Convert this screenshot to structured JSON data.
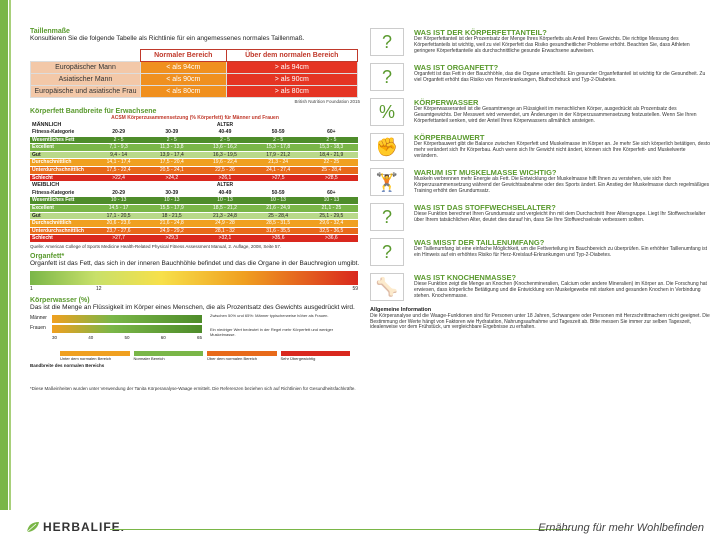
{
  "waist": {
    "title": "Taillenmaße",
    "subtitle": "Konsultieren Sie die folgende Tabelle als Richtlinie für ein angemessenes normales Taillenmaß.",
    "headers": [
      "",
      "Normaler Bereich",
      "Über dem normalen Bereich"
    ],
    "rows": [
      {
        "label": "Europäischer Mann",
        "normal": "< als 94cm",
        "over": "> als 94cm"
      },
      {
        "label": "Asiatischer Mann",
        "normal": "< als 90cm",
        "over": "> als 90cm"
      },
      {
        "label": "Europäische und asiatische Frau",
        "normal": "< als 80cm",
        "over": "> als 80cm"
      }
    ],
    "source": "British Nutrition Foundation 2015"
  },
  "bodyfat": {
    "title": "Körperfett Bandbreite für Erwachsene",
    "table_title": "ACSM Körperzusammensetzung (% Körperfett) für Männer und Frauen",
    "male_label": "MÄNNLICH",
    "female_label": "WEIBLICH",
    "alter_label": "ALTER",
    "cat_header": "Fitness-Kategorie",
    "ages": [
      "20-29",
      "30-39",
      "40-49",
      "50-59",
      "60+"
    ],
    "male_rows": [
      {
        "cat": "Wesentliches Fett",
        "cls": "c-ath",
        "vals": [
          "2 - 5",
          "2 - 5",
          "2 - 5",
          "2 - 5",
          "2 - 5"
        ]
      },
      {
        "cat": "Excellent",
        "cls": "c-exc",
        "vals": [
          "7,1 - 9,3",
          "11,3 - 13,8",
          "13,6 - 16,2",
          "15,3 - 17,8",
          "15,3 - 18,3"
        ]
      },
      {
        "cat": "Gut",
        "cls": "c-good",
        "vals": [
          "9,4 - 14",
          "13,9 - 17,4",
          "16,3 - 19,5",
          "17,9 - 21,2",
          "18,4 - 21,9"
        ]
      },
      {
        "cat": "Durchschnittlich",
        "cls": "c-avg",
        "vals": [
          "14,1 - 17,4",
          "17,5 - 20,4",
          "19,6 - 22,4",
          "21,3 - 24",
          "22 - 25"
        ]
      },
      {
        "cat": "Unterdurchschnittlich",
        "cls": "c-below",
        "vals": [
          "17,5 - 22,4",
          "20,5 - 24,1",
          "22,5 - 26",
          "24,1 - 27,4",
          "25 - 28,4"
        ]
      },
      {
        "cat": "Schlecht",
        "cls": "c-bad",
        "vals": [
          ">22,4",
          ">24,2",
          ">26,1",
          ">27,5",
          ">28,5"
        ]
      }
    ],
    "female_rows": [
      {
        "cat": "Wesentliches Fett",
        "cls": "c-ath",
        "vals": [
          "10 - 13",
          "10 - 13",
          "10 - 13",
          "10 - 13",
          "10 - 13"
        ]
      },
      {
        "cat": "Excellent",
        "cls": "c-exc",
        "vals": [
          "14,5 - 17",
          "15,5 - 17,9",
          "18,5 - 21,2",
          "21,6 - 24,9",
          "21,1 - 25"
        ]
      },
      {
        "cat": "Gut",
        "cls": "c-good",
        "vals": [
          "17,1 - 20,5",
          "18 - 21,5",
          "21,3 - 24,8",
          "25 - 28,4",
          "25,1 - 29,5"
        ]
      },
      {
        "cat": "Durchschnittlich",
        "cls": "c-avg",
        "vals": [
          "20,6 - 23,6",
          "21,6 - 24,8",
          "24,9 - 28",
          "28,5 - 31,5",
          "29,6 - 32,4"
        ]
      },
      {
        "cat": "Unterdurchschnittlich",
        "cls": "c-below",
        "vals": [
          "23,7 - 27,6",
          "24,9 - 29,2",
          "28,1 - 32",
          "31,6 - 35,5",
          "32,5 - 36,5"
        ]
      },
      {
        "cat": "Schlecht",
        "cls": "c-bad",
        "vals": [
          ">27,7",
          ">29,3",
          ">32,1",
          ">35,6",
          ">36,6"
        ]
      }
    ],
    "note": "Quelle: American College of Sports Medicine Health-Related Physical Fitness Assessment Manual, 2. Auflage, 2008, Seite 57."
  },
  "organ": {
    "title": "Organfett*",
    "text": "Organfett ist das Fett, das sich in der inneren Bauchhöhle befindet und das die Organe in der Bauchregion umgibt.",
    "ticks": [
      "1",
      "12",
      "59"
    ]
  },
  "water": {
    "title": "Körperwasser (%)",
    "text": "Das ist die Menge an Flüssigkeit im Körper eines Menschen, die als Prozentsatz des Gewichts ausgedrückt wird.",
    "row_labels": [
      "Männer",
      "Frauen"
    ],
    "axis": [
      "30",
      "40",
      "50",
      "60",
      "65"
    ],
    "note1": "Zwischen 50% und 65%: Männer typischerweise höher als Frauen.",
    "note2": "Ein niedriger Wert bedeutet in der Regel mehr Körperfett und weniger Muskelmasse.",
    "legend": [
      "Unter dem normalen Bereich",
      "Normaler Bereich",
      "Über dem normalen Bereich",
      "Sehr Übergewichtig"
    ],
    "legend_title": "Bandbreite des normalen Bereichs"
  },
  "footnote": "*Diese Maßeinheiten wurden unter Verwendung der Tanita Körperanalyse-Waage ermittelt. Die Referenzen beziehen sich auf Richtlinien für Gesundheitsfachkräfte.",
  "questions": [
    {
      "icon": "?",
      "title": "WAS IST DER KÖRPERFETTANTEIL?",
      "text": "Der Körperfettanteil ist der Prozentsatz der Menge Ihres Körperfetts als Anteil Ihres Gewichts. Die richtige Messung des Körperfettanteils ist wichtig, weil zu viel Körperfett das Risiko gesundheitlicher Probleme erhöht. Beachten Sie, dass Athleten geringere Körperfettanteile als durchschnittliche gesunde Erwachsene aufweisen."
    },
    {
      "icon": "?",
      "title": "WAS IST ORGANFETT?",
      "text": "Organfett ist das Fett in der Bauchhöhle, das die Organe umschließt. Ein gesunder Organfettanteil ist wichtig für die Gesundheit. Zu viel Organfett erhöht das Risiko von Herzerkrankungen, Bluthochdruck und Typ-2-Diabetes."
    },
    {
      "icon": "%",
      "title": "KÖRPERWASSER",
      "text": "Der Körperwasseranteil ist die Gesamtmenge an Flüssigkeit im menschlichen Körper, ausgedrückt als Prozentsatz des Gesamtgewichts. Der Messwert wird verwendet, um Änderungen in der Körperzusammensetzung festzustellen. Wenn Sie Ihren Körperfettanteil senken, wird der Anteil Ihres Körperwassers allmählich ansteigen."
    },
    {
      "icon": "✊",
      "title": "KÖRPERBAUWERT",
      "text": "Der Körperbauwert gibt die Balance zwischen Körperfett und Muskelmasse im Körper an. Je mehr Sie sich körperlich betätigen, desto mehr verändert sich Ihr Körperbau. Auch wenn sich Ihr Gewicht nicht ändert, können sich Ihre Körperfett- und Muskelwerte verändern."
    },
    {
      "icon": "🏋",
      "title": "WARUM IST MUSKELMASSE WICHTIG?",
      "text": "Muskeln verbrennen mehr Energie als Fett. Die Entwicklung der Muskelmasse hilft Ihnen zu verstehen, wie sich Ihre Körperzusammensetzung während der Gewichtsabnahme oder des Sports ändert. Ein Anstieg der Muskelmasse durch regelmäßiges Training erhöht den Grundumsatz."
    },
    {
      "icon": "?",
      "title": "WAS IST DAS STOFFWECHSELALTER?",
      "text": "Diese Funktion berechnet Ihren Grundumsatz und vergleicht ihn mit dem Durchschnitt Ihrer Altersgruppe. Liegt Ihr Stoffwechselalter über Ihrem tatsächlichen Alter, deutet dies darauf hin, dass Sie Ihre Stoffwechselrate verbessern sollten."
    },
    {
      "icon": "?",
      "title": "WAS MISST DER TAILLENUMFANG?",
      "text": "Der Taillenumfang ist eine einfache Möglichkeit, um die Fettverteilung im Bauchbereich zu überprüfen. Ein erhöhter Taillenumfang ist ein Hinweis auf ein erhöhtes Risiko für Herz-Kreislauf-Erkrankungen und Typ-2-Diabetes."
    },
    {
      "icon": "🦴",
      "title": "WAS IST KNOCHENMASSE?",
      "text": "Diese Funktion zeigt die Menge an Knochen (Knochenmineralien, Calcium oder andere Mineralien) im Körper an. Die Forschung hat erwiesen, dass körperliche Betätigung und die Entwicklung von Muskelgewebe mit starken und gesunden Knochen in Verbindung stehen. Knochenmasse."
    }
  ],
  "addinfo": {
    "title": "Allgemeine Information",
    "text": "Die Körperanalyse und die Waage-Funktionen sind für Personen unter 18 Jahren, Schwangere oder Personen mit Herzschrittmachern nicht geeignet. Die Bestimmung der Werte hängt von Faktoren wie Hydratation, Nahrungsaufnahme und Tageszeit ab. Bitte messen Sie immer zur selben Tageszeit, idealerweise vor dem Frühstück, um vergleichbare Ergebnisse zu erhalten."
  },
  "footer": {
    "brand": "HERBALIFE.",
    "slogan": "Ernährung für mehr Wohlbefinden"
  }
}
